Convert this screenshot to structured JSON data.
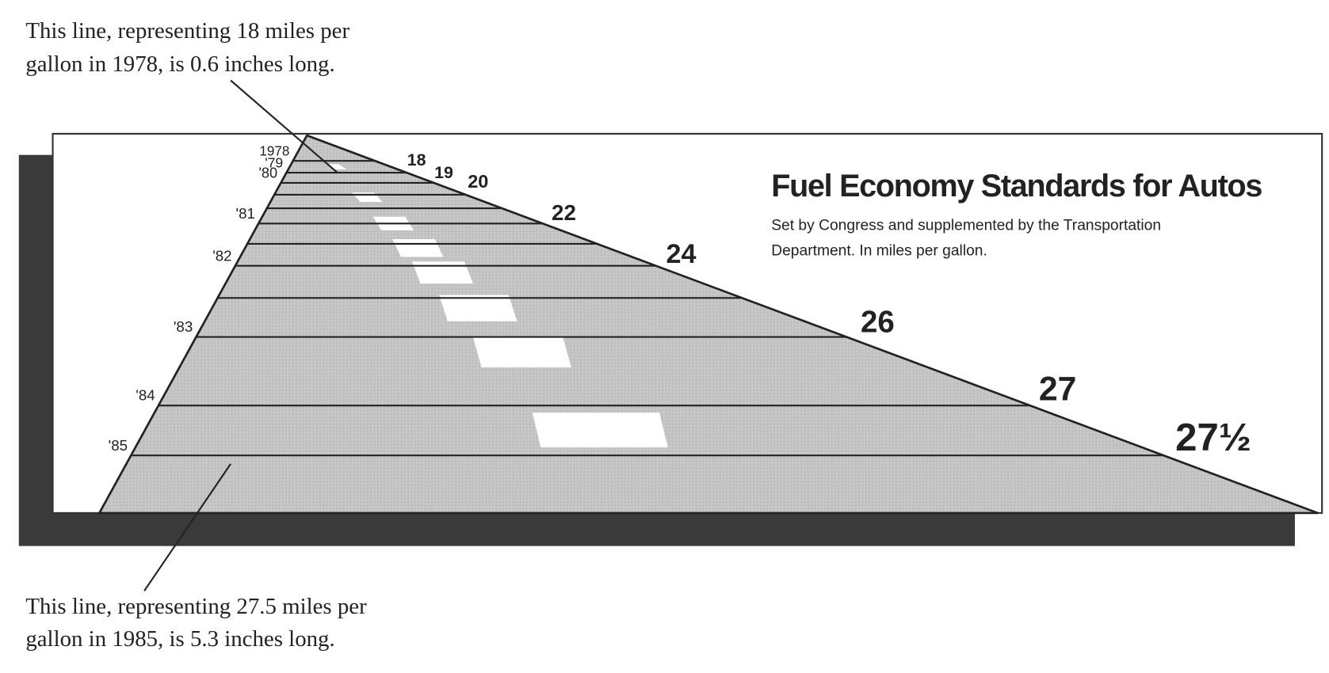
{
  "chart_data": {
    "type": "road",
    "title": "Fuel Economy Standards for Autos",
    "subtitle": [
      "Set by Congress and supplemented by the Transportation",
      "Department. In miles per gallon."
    ],
    "annotations": [
      [
        "This line, representing 18 miles per",
        "gallon in 1978, is 0.6 inches long."
      ],
      [
        "This line, representing 27.5 miles per",
        "gallon in 1985, is 5.3 inches long."
      ]
    ],
    "categories": [
      "1978",
      "'79",
      "'80",
      "'81",
      "'82",
      "'83",
      "'84",
      "'85"
    ],
    "values": [
      18,
      19,
      20,
      22,
      24,
      26,
      27,
      27.5
    ],
    "value_labels": [
      "18",
      "19",
      "20",
      "22",
      "24",
      "26",
      "27",
      "27½"
    ],
    "color": "#c2c2c2"
  }
}
